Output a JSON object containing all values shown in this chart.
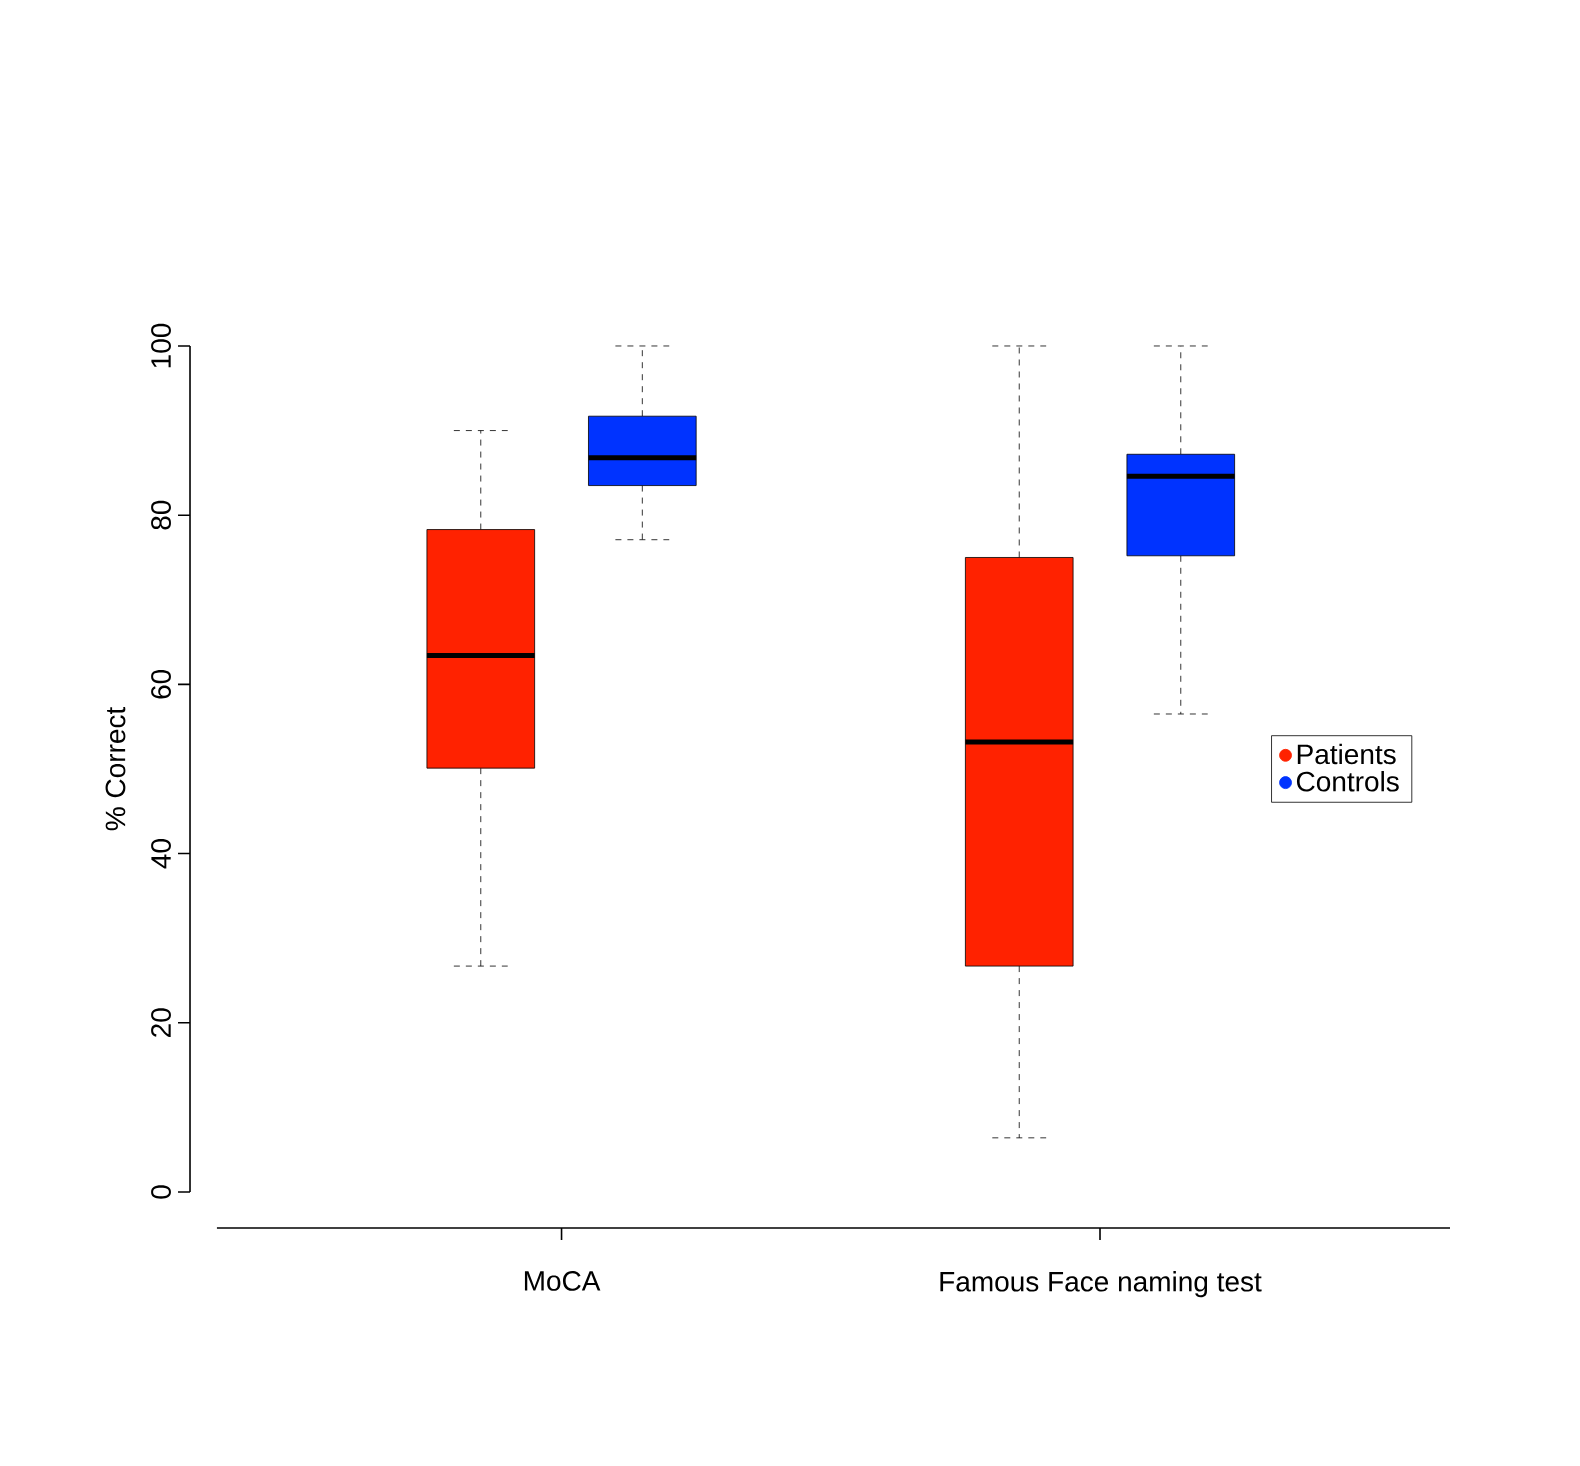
{
  "chart_data": {
    "type": "box",
    "ylabel": "% Correct",
    "categories": [
      "MoCA",
      "Famous Face naming test"
    ],
    "ylim": [
      0,
      100
    ],
    "yticks": [
      0,
      20,
      40,
      60,
      80,
      100
    ],
    "legend": "right",
    "series": [
      {
        "name": "Patients",
        "color": "#ff2200",
        "boxes": [
          {
            "low": 26.7,
            "q1": 50.1,
            "median": 63.4,
            "q3": 78.3,
            "high": 90
          },
          {
            "low": 6.4,
            "q1": 26.7,
            "median": 53.2,
            "q3": 75,
            "high": 100
          }
        ]
      },
      {
        "name": "Controls",
        "color": "#0033ff",
        "boxes": [
          {
            "low": 77.1,
            "q1": 83.5,
            "median": 86.8,
            "q3": 91.7,
            "high": 100
          },
          {
            "low": 56.5,
            "q1": 75.2,
            "median": 84.6,
            "q3": 87.2,
            "high": 100
          }
        ]
      }
    ]
  }
}
